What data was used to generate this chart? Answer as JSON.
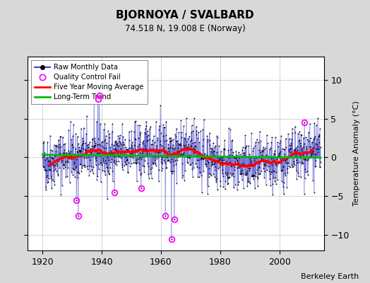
{
  "title": "BJORNOYA / SVALBARD",
  "subtitle": "74.518 N, 19.008 E (Norway)",
  "ylabel": "Temperature Anomaly (°C)",
  "credit": "Berkeley Earth",
  "xlim": [
    1915,
    2015
  ],
  "ylim": [
    -12,
    13
  ],
  "yticks": [
    -10,
    -5,
    0,
    5,
    10
  ],
  "xticks": [
    1920,
    1940,
    1960,
    1980,
    2000
  ],
  "bg_color": "#d8d8d8",
  "plot_bg": "#ffffff",
  "raw_line_color": "#4444cc",
  "raw_dot_color": "#000000",
  "moving_avg_color": "#ff0000",
  "trend_color": "#00bb00",
  "qc_fail_color": "#ff00ff",
  "seed": 42,
  "start_year": 1920,
  "end_year": 2013
}
